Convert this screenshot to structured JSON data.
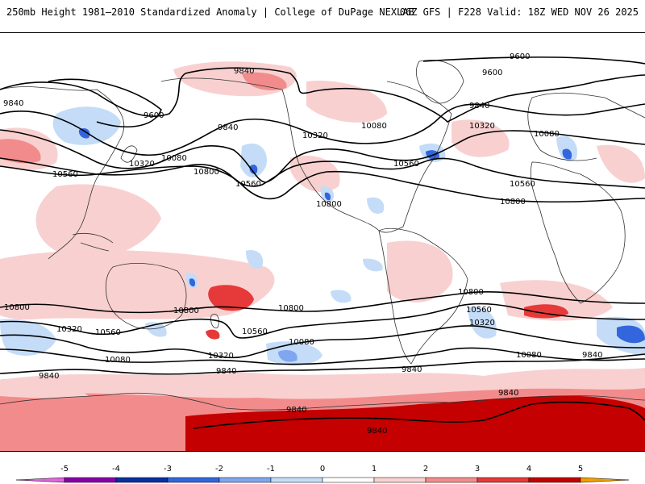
{
  "header": {
    "left_title": "250mb Height 1981–2010 Standardized Anomaly | College of DuPage NEXLAB",
    "right_title": "06Z GFS | F228 Valid: 18Z WED NOV 26 2025"
  },
  "contour_labels": {
    "c9600": "9600",
    "c9840": "9840",
    "c10080": "10080",
    "c10320": "10320",
    "c10560": "10560",
    "c10800": "10800"
  },
  "colorbar": {
    "ticks": [
      "-5",
      "-4",
      "-3",
      "-2",
      "-1",
      "0",
      "1",
      "2",
      "3",
      "4",
      "5"
    ],
    "colors": [
      "#e066e0",
      "#8a00a8",
      "#0a2fa0",
      "#3366dd",
      "#7fa6ee",
      "#c4dcf7",
      "#ffffff",
      "#f9d0d0",
      "#f28c8c",
      "#e63939",
      "#c40000",
      "#f5a000"
    ]
  },
  "anomaly_colors": {
    "neg1": "#c4dcf7",
    "neg2": "#7fa6ee",
    "neg3": "#3366dd",
    "pos1": "#f9d0d0",
    "pos2": "#f28c8c",
    "pos3": "#e63939",
    "pos4": "#c40000"
  }
}
